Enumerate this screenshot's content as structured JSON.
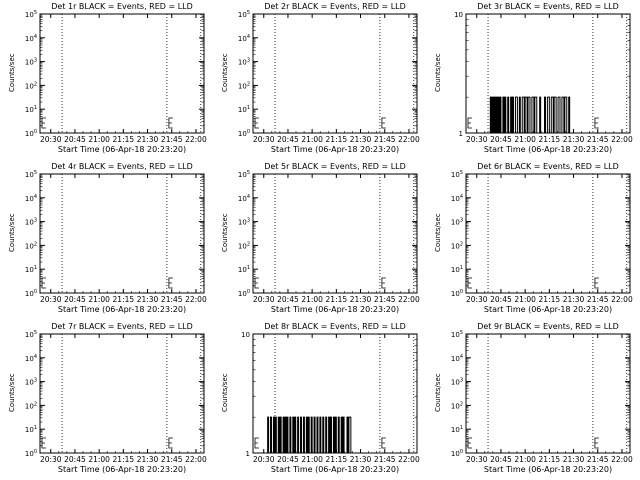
{
  "figure": {
    "xlabel": "Start Time (06-Apr-18 20:23:20)",
    "ylabel": "Counts/sec",
    "x_ticks": [
      "20:30",
      "20:45",
      "21:00",
      "21:15",
      "21:30",
      "21:45",
      "22:00"
    ],
    "colors": {
      "events": "#000000",
      "lld": "#ff0000",
      "background": "#ffffff"
    }
  },
  "chart_data": [
    {
      "type": "line",
      "title": "Det 1r BLACK = Events, RED = LLD",
      "y_scale": "log",
      "ylim": [
        1,
        100000
      ],
      "y_ticks": [
        "10^0",
        "10^1",
        "10^2",
        "10^3",
        "10^4",
        "10^5"
      ],
      "x_range": [
        "20:23:20",
        "22:05:00"
      ],
      "dotted_verticals": [
        "20:37",
        "21:42",
        "22:03"
      ],
      "series": [
        {
          "values": []
        }
      ]
    },
    {
      "type": "line",
      "title": "Det 2r BLACK = Events, RED = LLD",
      "y_scale": "log",
      "ylim": [
        1,
        100000
      ],
      "y_ticks": [
        "10^0",
        "10^1",
        "10^2",
        "10^3",
        "10^4",
        "10^5"
      ],
      "x_range": [
        "20:23:20",
        "22:05:00"
      ],
      "dotted_verticals": [
        "20:37",
        "21:42",
        "22:03"
      ],
      "series": [
        {
          "values": []
        }
      ]
    },
    {
      "type": "line",
      "title": "Det 3r BLACK = Events, RED = LLD",
      "y_scale": "log",
      "ylim": [
        1,
        10
      ],
      "y_ticks": [
        "1",
        "10"
      ],
      "x_range": [
        "20:23:20",
        "22:05:00"
      ],
      "dotted_verticals": [
        "20:37",
        "21:42",
        "22:03"
      ],
      "series": [
        {
          "values": [
            [
              20.63,
              1
            ],
            [
              20.64,
              2
            ],
            [
              20.65,
              1
            ],
            [
              20.66,
              2
            ],
            [
              20.67,
              1
            ],
            [
              20.68,
              2
            ],
            [
              20.69,
              1
            ],
            [
              20.7,
              2
            ],
            [
              20.71,
              1
            ],
            [
              20.72,
              2
            ],
            [
              20.73,
              1
            ],
            [
              20.74,
              2
            ],
            [
              20.75,
              1
            ],
            [
              20.77,
              2
            ],
            [
              20.78,
              1
            ],
            [
              20.79,
              2
            ],
            [
              20.8,
              1
            ],
            [
              20.82,
              2
            ],
            [
              20.83,
              1
            ],
            [
              20.85,
              2
            ],
            [
              20.86,
              1
            ],
            [
              20.87,
              2
            ],
            [
              20.88,
              1
            ],
            [
              20.9,
              2
            ],
            [
              20.92,
              1
            ],
            [
              20.94,
              2
            ],
            [
              20.95,
              1
            ],
            [
              20.97,
              2
            ],
            [
              20.99,
              1
            ],
            [
              21.0,
              2
            ],
            [
              21.02,
              1
            ],
            [
              21.03,
              2
            ],
            [
              21.05,
              1
            ],
            [
              21.07,
              2
            ],
            [
              21.09,
              1
            ],
            [
              21.1,
              2
            ],
            [
              21.12,
              1
            ],
            [
              21.15,
              2
            ],
            [
              21.16,
              1
            ],
            [
              21.2,
              2
            ],
            [
              21.21,
              1
            ],
            [
              21.23,
              2
            ],
            [
              21.25,
              1
            ],
            [
              21.27,
              2
            ],
            [
              21.29,
              1
            ],
            [
              21.3,
              2
            ],
            [
              21.32,
              1
            ],
            [
              21.34,
              2
            ],
            [
              21.36,
              1
            ],
            [
              21.38,
              2
            ],
            [
              21.4,
              1
            ],
            [
              21.41,
              2
            ],
            [
              21.43,
              1
            ],
            [
              21.45,
              2
            ],
            [
              21.46,
              1
            ]
          ]
        }
      ]
    },
    {
      "type": "line",
      "title": "Det 4r BLACK = Events, RED = LLD",
      "y_scale": "log",
      "ylim": [
        1,
        100000
      ],
      "y_ticks": [
        "10^0",
        "10^1",
        "10^2",
        "10^3",
        "10^4",
        "10^5"
      ],
      "x_range": [
        "20:23:20",
        "22:05:00"
      ],
      "dotted_verticals": [
        "20:37",
        "21:42",
        "22:03"
      ],
      "series": [
        {
          "values": []
        }
      ]
    },
    {
      "type": "line",
      "title": "Det 5r BLACK = Events, RED = LLD",
      "y_scale": "log",
      "ylim": [
        1,
        100000
      ],
      "y_ticks": [
        "10^0",
        "10^1",
        "10^2",
        "10^3",
        "10^4",
        "10^5"
      ],
      "x_range": [
        "20:23:20",
        "22:05:00"
      ],
      "dotted_verticals": [
        "20:37",
        "21:42",
        "22:03"
      ],
      "series": [
        {
          "values": []
        }
      ]
    },
    {
      "type": "line",
      "title": "Det 6r BLACK = Events, RED = LLD",
      "y_scale": "log",
      "ylim": [
        1,
        100000
      ],
      "y_ticks": [
        "10^0",
        "10^1",
        "10^2",
        "10^3",
        "10^4",
        "10^5"
      ],
      "x_range": [
        "20:23:20",
        "22:05:00"
      ],
      "dotted_verticals": [
        "20:37",
        "21:42",
        "22:03"
      ],
      "series": [
        {
          "values": []
        }
      ]
    },
    {
      "type": "line",
      "title": "Det 7r BLACK = Events, RED = LLD",
      "y_scale": "log",
      "ylim": [
        1,
        100000
      ],
      "y_ticks": [
        "10^0",
        "10^1",
        "10^2",
        "10^3",
        "10^4",
        "10^5"
      ],
      "x_range": [
        "20:23:20",
        "22:05:00"
      ],
      "dotted_verticals": [
        "20:37",
        "21:42",
        "22:03"
      ],
      "series": [
        {
          "values": []
        }
      ]
    },
    {
      "type": "line",
      "title": "Det 8r BLACK = Events, RED = LLD",
      "y_scale": "log",
      "ylim": [
        1,
        10
      ],
      "y_ticks": [
        "1",
        "10"
      ],
      "x_range": [
        "20:23:20",
        "22:05:00"
      ],
      "dotted_verticals": [
        "20:37",
        "21:42",
        "22:03"
      ],
      "series": [
        {
          "values": [
            [
              20.53,
              1
            ],
            [
              20.54,
              2
            ],
            [
              20.55,
              1
            ],
            [
              20.57,
              2
            ],
            [
              20.58,
              1
            ],
            [
              20.6,
              2
            ],
            [
              20.61,
              1
            ],
            [
              20.62,
              2
            ],
            [
              20.63,
              1
            ],
            [
              20.65,
              2
            ],
            [
              20.66,
              1
            ],
            [
              20.67,
              2
            ],
            [
              20.68,
              1
            ],
            [
              20.7,
              2
            ],
            [
              20.71,
              1
            ],
            [
              20.72,
              2
            ],
            [
              20.73,
              1
            ],
            [
              20.74,
              2
            ],
            [
              20.75,
              1
            ],
            [
              20.77,
              2
            ],
            [
              20.78,
              1
            ],
            [
              20.8,
              2
            ],
            [
              20.81,
              1
            ],
            [
              20.82,
              2
            ],
            [
              20.83,
              1
            ],
            [
              20.85,
              2
            ],
            [
              20.86,
              1
            ],
            [
              20.88,
              2
            ],
            [
              20.89,
              1
            ],
            [
              20.91,
              2
            ],
            [
              20.92,
              1
            ],
            [
              20.94,
              2
            ],
            [
              20.95,
              1
            ],
            [
              20.96,
              2
            ],
            [
              20.97,
              1
            ],
            [
              20.99,
              2
            ],
            [
              21.0,
              1
            ],
            [
              21.02,
              2
            ],
            [
              21.03,
              1
            ],
            [
              21.05,
              2
            ],
            [
              21.06,
              1
            ],
            [
              21.08,
              2
            ],
            [
              21.09,
              1
            ],
            [
              21.11,
              2
            ],
            [
              21.12,
              1
            ],
            [
              21.14,
              2
            ],
            [
              21.15,
              1
            ],
            [
              21.17,
              2
            ],
            [
              21.18,
              1
            ],
            [
              21.19,
              2
            ],
            [
              21.2,
              1
            ],
            [
              21.22,
              2
            ],
            [
              21.23,
              1
            ],
            [
              21.24,
              2
            ],
            [
              21.25,
              1
            ],
            [
              21.27,
              2
            ],
            [
              21.28,
              1
            ],
            [
              21.3,
              2
            ],
            [
              21.31,
              1
            ],
            [
              21.32,
              2
            ],
            [
              21.33,
              1
            ],
            [
              21.36,
              2
            ],
            [
              21.37,
              1
            ],
            [
              21.38,
              2
            ],
            [
              21.4,
              1
            ]
          ]
        }
      ]
    },
    {
      "type": "line",
      "title": "Det 9r BLACK = Events, RED = LLD",
      "y_scale": "log",
      "ylim": [
        1,
        100000
      ],
      "y_ticks": [
        "10^0",
        "10^1",
        "10^2",
        "10^3",
        "10^4",
        "10^5"
      ],
      "x_range": [
        "20:23:20",
        "22:05:00"
      ],
      "dotted_verticals": [
        "20:37",
        "21:42",
        "22:03"
      ],
      "series": [
        {
          "values": []
        }
      ]
    }
  ]
}
